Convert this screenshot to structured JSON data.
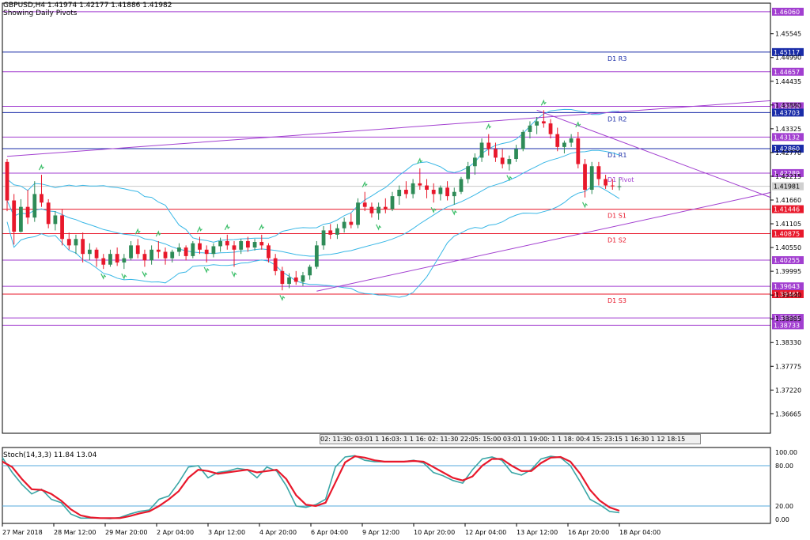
{
  "header": {
    "line1": "GBPUSD,H4  1.41974 1.42177 1.41886 1.41982",
    "line2": "Showing Daily Pivots"
  },
  "stoch_label": "Stoch(14,3,3) 11.84 13.04",
  "time_strip": "02: 11:30: 03:01 1 16:03: 1 1 16: 02: 11:30 22:05: 15:00 03:01 1 19:00: 1 1 18: 00:4 15: 23:15 1 16:30 1 12 18:15",
  "colors": {
    "bull": "#2e8b57",
    "bear": "#e8182b",
    "bollinger": "#39b7e6",
    "trendline": "#a23fd0",
    "pivot_line": "#a23fd0",
    "resist_line": "#1a2ca8",
    "support_line": "#e8182b",
    "stoch_main": "#3aa6a6",
    "stoch_signal": "#e8182b",
    "fractal": "#3dbf6a"
  },
  "chart_data": {
    "type": "candlestick",
    "symbol": "GBPUSD",
    "timeframe": "H4",
    "ohlc_current": {
      "open": 1.41974,
      "high": 1.42177,
      "low": 1.41886,
      "close": 1.41982
    },
    "ylim": [
      1.3621,
      1.4626
    ],
    "price_ticks": [
      1.45545,
      1.4499,
      1.44435,
      1.4388,
      1.43325,
      1.4277,
      1.42215,
      1.4166,
      1.41105,
      1.4055,
      1.39995,
      1.3944,
      1.38885,
      1.3833,
      1.37775,
      1.3722,
      1.36665
    ],
    "x_labels": [
      "27 Mar 2018",
      "28 Mar 12:00",
      "29 Mar 20:00",
      "2 Apr 04:00",
      "3 Apr 12:00",
      "4 Apr 20:00",
      "6 Apr 04:00",
      "9 Apr 12:00",
      "10 Apr 20:00",
      "12 Apr 04:00",
      "13 Apr 12:00",
      "16 Apr 20:00",
      "18 Apr 04:00"
    ],
    "levels": [
      {
        "price": 1.4606,
        "label": "",
        "kind": "pivot"
      },
      {
        "price": 1.45117,
        "label": "D1 R3",
        "kind": "resist"
      },
      {
        "price": 1.44657,
        "label": "",
        "kind": "pivot"
      },
      {
        "price": 1.4385,
        "label": "",
        "kind": "pivot"
      },
      {
        "price": 1.43703,
        "label": "D1 R2",
        "kind": "resist"
      },
      {
        "price": 1.43132,
        "label": "",
        "kind": "pivot"
      },
      {
        "price": 1.4286,
        "label": "D1 R1",
        "kind": "resist"
      },
      {
        "price": 1.42289,
        "label": "D1 Pivot",
        "kind": "pivot"
      },
      {
        "price": 1.41446,
        "label": "D1 S1",
        "kind": "support"
      },
      {
        "price": 1.40875,
        "label": "D1 S2",
        "kind": "support"
      },
      {
        "price": 1.40255,
        "label": "",
        "kind": "pivot"
      },
      {
        "price": 1.39643,
        "label": "",
        "kind": "pivot"
      },
      {
        "price": 1.39461,
        "label": "D1 S3",
        "kind": "support"
      },
      {
        "price": 1.38906,
        "label": "",
        "kind": "pivot"
      },
      {
        "price": 1.38733,
        "label": "",
        "kind": "pivot"
      }
    ],
    "current_price": 1.41981,
    "candles": [
      [
        1.4255,
        1.4262,
        1.414,
        1.4165
      ],
      [
        1.4165,
        1.418,
        1.4062,
        1.4092
      ],
      [
        1.4092,
        1.4168,
        1.409,
        1.415
      ],
      [
        1.415,
        1.419,
        1.411,
        1.4125
      ],
      [
        1.4125,
        1.421,
        1.4115,
        1.418
      ],
      [
        1.418,
        1.4225,
        1.415,
        1.416
      ],
      [
        1.416,
        1.4168,
        1.41,
        1.411
      ],
      [
        1.411,
        1.414,
        1.4095,
        1.413
      ],
      [
        1.413,
        1.4145,
        1.406,
        1.4075
      ],
      [
        1.4075,
        1.409,
        1.405,
        1.406
      ],
      [
        1.406,
        1.4085,
        1.404,
        1.4075
      ],
      [
        1.4075,
        1.409,
        1.402,
        1.404
      ],
      [
        1.404,
        1.4065,
        1.4025,
        1.405
      ],
      [
        1.405,
        1.4055,
        1.401,
        1.403
      ],
      [
        1.403,
        1.404,
        1.4005,
        1.4015
      ],
      [
        1.4015,
        1.405,
        1.401,
        1.404
      ],
      [
        1.404,
        1.4055,
        1.4012,
        1.402
      ],
      [
        1.402,
        1.404,
        1.4005,
        1.403
      ],
      [
        1.403,
        1.407,
        1.4025,
        1.406
      ],
      [
        1.406,
        1.4075,
        1.403,
        1.404
      ],
      [
        1.404,
        1.405,
        1.401,
        1.4025
      ],
      [
        1.4025,
        1.406,
        1.4015,
        1.405
      ],
      [
        1.405,
        1.407,
        1.403,
        1.4045
      ],
      [
        1.4045,
        1.4055,
        1.4015,
        1.403
      ],
      [
        1.403,
        1.405,
        1.402,
        1.4045
      ],
      [
        1.4045,
        1.4065,
        1.4035,
        1.4055
      ],
      [
        1.4055,
        1.406,
        1.4025,
        1.4035
      ],
      [
        1.4035,
        1.407,
        1.403,
        1.4065
      ],
      [
        1.4065,
        1.408,
        1.404,
        1.405
      ],
      [
        1.405,
        1.406,
        1.402,
        1.404
      ],
      [
        1.404,
        1.4065,
        1.4032,
        1.4058
      ],
      [
        1.4058,
        1.4078,
        1.4045,
        1.407
      ],
      [
        1.407,
        1.4085,
        1.405,
        1.406
      ],
      [
        1.406,
        1.407,
        1.401,
        1.405
      ],
      [
        1.405,
        1.4075,
        1.404,
        1.407
      ],
      [
        1.407,
        1.408,
        1.4045,
        1.4055
      ],
      [
        1.4055,
        1.4075,
        1.4048,
        1.4068
      ],
      [
        1.4068,
        1.4085,
        1.405,
        1.406
      ],
      [
        1.406,
        1.4065,
        1.402,
        1.403
      ],
      [
        1.403,
        1.404,
        1.399,
        1.4
      ],
      [
        1.4,
        1.401,
        1.3955,
        1.397
      ],
      [
        1.397,
        1.3995,
        1.396,
        1.3985
      ],
      [
        1.3985,
        1.4,
        1.3968,
        1.3975
      ],
      [
        1.3975,
        1.3998,
        1.3965,
        1.399
      ],
      [
        1.399,
        1.4015,
        1.398,
        1.401
      ],
      [
        1.401,
        1.407,
        1.4005,
        1.406
      ],
      [
        1.406,
        1.4105,
        1.405,
        1.4095
      ],
      [
        1.4095,
        1.411,
        1.4075,
        1.4085
      ],
      [
        1.4085,
        1.411,
        1.4075,
        1.41
      ],
      [
        1.41,
        1.4125,
        1.409,
        1.4115
      ],
      [
        1.4115,
        1.4135,
        1.41,
        1.4108
      ],
      [
        1.4108,
        1.417,
        1.41,
        1.416
      ],
      [
        1.416,
        1.4185,
        1.414,
        1.415
      ],
      [
        1.415,
        1.416,
        1.4125,
        1.4135
      ],
      [
        1.4135,
        1.416,
        1.412,
        1.415
      ],
      [
        1.415,
        1.417,
        1.4135,
        1.4145
      ],
      [
        1.4145,
        1.4185,
        1.414,
        1.4175
      ],
      [
        1.4175,
        1.42,
        1.4155,
        1.419
      ],
      [
        1.419,
        1.421,
        1.417,
        1.418
      ],
      [
        1.418,
        1.4215,
        1.417,
        1.4205
      ],
      [
        1.4205,
        1.424,
        1.419,
        1.42
      ],
      [
        1.42,
        1.4215,
        1.417,
        1.419
      ],
      [
        1.419,
        1.4205,
        1.416,
        1.418
      ],
      [
        1.418,
        1.42,
        1.4165,
        1.4195
      ],
      [
        1.4195,
        1.421,
        1.4165,
        1.4175
      ],
      [
        1.4175,
        1.4195,
        1.4155,
        1.4185
      ],
      [
        1.4185,
        1.422,
        1.418,
        1.4215
      ],
      [
        1.4215,
        1.4255,
        1.4205,
        1.4245
      ],
      [
        1.4245,
        1.4275,
        1.4225,
        1.4265
      ],
      [
        1.4265,
        1.431,
        1.4255,
        1.43
      ],
      [
        1.43,
        1.432,
        1.427,
        1.4285
      ],
      [
        1.4285,
        1.43,
        1.4255,
        1.4265
      ],
      [
        1.4265,
        1.4285,
        1.424,
        1.425
      ],
      [
        1.425,
        1.427,
        1.4235,
        1.4262
      ],
      [
        1.4262,
        1.4295,
        1.4255,
        1.4285
      ],
      [
        1.4285,
        1.433,
        1.428,
        1.4325
      ],
      [
        1.4325,
        1.435,
        1.431,
        1.434
      ],
      [
        1.434,
        1.436,
        1.432,
        1.435
      ],
      [
        1.435,
        1.4376,
        1.4335,
        1.4345
      ],
      [
        1.4345,
        1.4355,
        1.431,
        1.432
      ],
      [
        1.432,
        1.4335,
        1.428,
        1.429
      ],
      [
        1.429,
        1.4305,
        1.4275,
        1.43
      ],
      [
        1.43,
        1.432,
        1.429,
        1.431
      ],
      [
        1.431,
        1.4325,
        1.424,
        1.425
      ],
      [
        1.425,
        1.4262,
        1.4172,
        1.419
      ],
      [
        1.419,
        1.4255,
        1.418,
        1.4245
      ],
      [
        1.4245,
        1.4255,
        1.42,
        1.4215
      ],
      [
        1.4215,
        1.4225,
        1.4192,
        1.42
      ],
      [
        1.42,
        1.4215,
        1.419,
        1.4198
      ],
      [
        1.41974,
        1.42177,
        1.41886,
        1.41982
      ]
    ],
    "stochastic": {
      "params": "14,3,3",
      "main": 11.84,
      "signal": 13.04,
      "levels": [
        80,
        20
      ],
      "ylim": [
        0,
        100
      ],
      "ticks": [
        100,
        80,
        20,
        0
      ],
      "main_series": [
        92,
        70,
        52,
        38,
        45,
        30,
        25,
        8,
        2,
        2,
        2,
        1,
        3,
        8,
        12,
        14,
        30,
        35,
        55,
        78,
        80,
        62,
        70,
        72,
        76,
        74,
        62,
        78,
        72,
        50,
        20,
        18,
        22,
        30,
        78,
        93,
        95,
        88,
        86,
        86,
        86,
        86,
        88,
        84,
        70,
        65,
        58,
        54,
        74,
        90,
        93,
        88,
        70,
        66,
        74,
        90,
        94,
        92,
        80,
        56,
        30,
        22,
        12,
        10
      ],
      "signal_series": [
        86,
        78,
        60,
        45,
        44,
        38,
        28,
        15,
        6,
        3,
        2,
        2,
        2,
        5,
        9,
        12,
        20,
        30,
        42,
        62,
        74,
        72,
        68,
        70,
        72,
        74,
        70,
        72,
        74,
        60,
        36,
        22,
        20,
        25,
        55,
        85,
        94,
        92,
        88,
        86,
        86,
        86,
        87,
        86,
        78,
        70,
        62,
        58,
        64,
        80,
        90,
        90,
        80,
        72,
        72,
        84,
        92,
        93,
        86,
        68,
        44,
        28,
        18,
        13
      ]
    }
  }
}
